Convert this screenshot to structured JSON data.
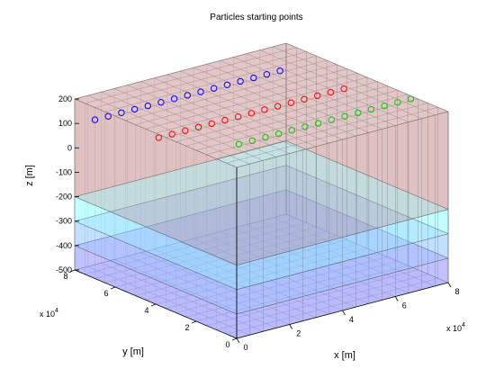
{
  "chart_data": {
    "type": "scatter",
    "title": "Particles starting points",
    "xlabel": "x [m]",
    "ylabel": "y [m]",
    "zlabel": "z [m]",
    "x_exponent": "x 10",
    "x_exponent_power": "4",
    "y_exponent": "x 10",
    "y_exponent_power": "4",
    "xlim": [
      0,
      80000
    ],
    "ylim": [
      0,
      80000
    ],
    "zlim": [
      -500,
      200
    ],
    "x_ticks": [
      0,
      20000,
      40000,
      60000,
      80000
    ],
    "x_tick_labels": [
      "0",
      "2",
      "4",
      "6",
      "8"
    ],
    "y_ticks": [
      0,
      20000,
      40000,
      60000,
      80000
    ],
    "y_tick_labels": [
      "0",
      "2",
      "4",
      "6",
      "8"
    ],
    "z_ticks": [
      -500,
      -400,
      -300,
      -200,
      -100,
      0,
      100,
      200
    ],
    "z_tick_labels": [
      "-500",
      "-400",
      "-300",
      "-200",
      "-100",
      "0",
      "100",
      "200"
    ],
    "grid": true,
    "layers": [
      {
        "z_bottom": -500,
        "z_top": -400,
        "color": "#7f7fff"
      },
      {
        "z_bottom": -400,
        "z_top": -300,
        "color": "#7fbfff"
      },
      {
        "z_bottom": -300,
        "z_top": -200,
        "color": "#7fffff"
      },
      {
        "z_bottom": -200,
        "z_top": 200,
        "color": "#bf7f7f"
      }
    ],
    "series": [
      {
        "color": "#0000ff",
        "y": 70000,
        "z": 150,
        "x": [
          0,
          5000,
          10000,
          15000,
          20000,
          25000,
          30000,
          35000,
          40000,
          45000,
          50000,
          55000,
          60000,
          65000,
          70000
        ]
      },
      {
        "color": "#ff0000",
        "y": 45000,
        "z": 150,
        "x": [
          5000,
          10000,
          15000,
          20000,
          25000,
          30000,
          35000,
          40000,
          45000,
          50000,
          55000,
          60000,
          65000,
          70000,
          75000
        ]
      },
      {
        "color": "#00cc00",
        "y": 25000,
        "z": 150,
        "x": [
          20000,
          25000,
          30000,
          35000,
          40000,
          45000,
          50000,
          55000,
          60000,
          65000,
          70000,
          75000,
          80000,
          85000
        ]
      }
    ]
  }
}
